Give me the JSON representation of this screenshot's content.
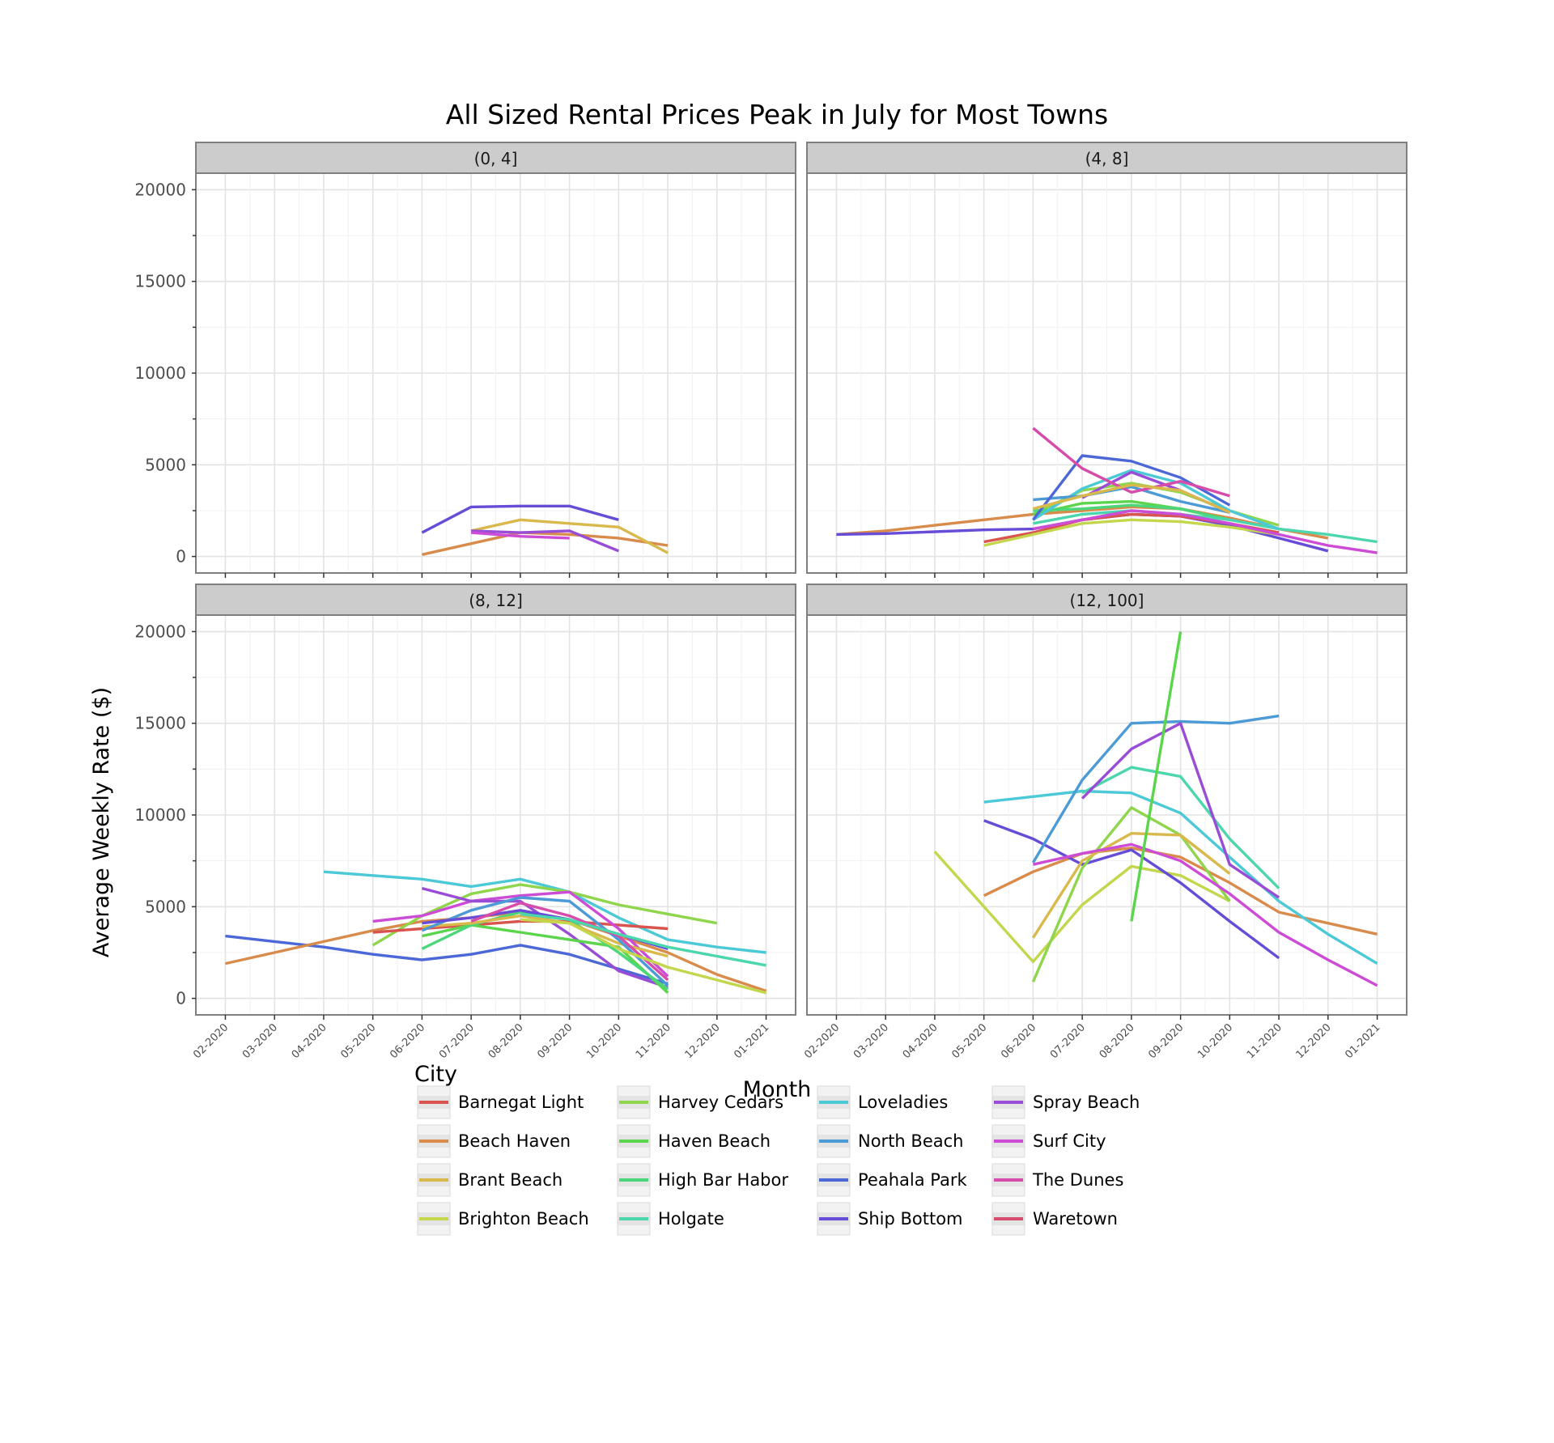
{
  "chart_data": {
    "type": "line",
    "title": "All Sized Rental Prices Peak in July for Most Towns",
    "xlabel": "Month",
    "ylabel": "Average Weekly Rate ($)",
    "x": [
      "02-2020",
      "03-2020",
      "04-2020",
      "05-2020",
      "06-2020",
      "07-2020",
      "08-2020",
      "09-2020",
      "10-2020",
      "11-2020",
      "12-2020",
      "01-2021"
    ],
    "ylim": [
      -900,
      20900
    ],
    "yticks": [
      0,
      5000,
      10000,
      15000,
      20000
    ],
    "grid": true,
    "legend": {
      "title": "City",
      "placement": "bottom",
      "entries": [
        {
          "name": "Barnegat Light",
          "color": "#d9534f"
        },
        {
          "name": "Beach Haven",
          "color": "#d98b4c"
        },
        {
          "name": "Brant Beach",
          "color": "#d9b84c"
        },
        {
          "name": "Brighton Beach",
          "color": "#c3d64c"
        },
        {
          "name": "Harvey Cedars",
          "color": "#8fd64c"
        },
        {
          "name": "Haven Beach",
          "color": "#5bd64c"
        },
        {
          "name": "High Bar Habor",
          "color": "#4cd67a"
        },
        {
          "name": "Holgate",
          "color": "#4cd6ad"
        },
        {
          "name": "Loveladies",
          "color": "#4cc9d6"
        },
        {
          "name": "North Beach",
          "color": "#4c9ad6"
        },
        {
          "name": "Peahala Park",
          "color": "#4c67d6"
        },
        {
          "name": "Ship Bottom",
          "color": "#664cd6"
        },
        {
          "name": "Spray Beach",
          "color": "#994cd6"
        },
        {
          "name": "Surf City",
          "color": "#cc4cd6"
        },
        {
          "name": "The Dunes",
          "color": "#d64caa"
        },
        {
          "name": "Waretown",
          "color": "#d64c6e"
        }
      ]
    },
    "panels": [
      {
        "label": "(0, 4]",
        "series": [
          {
            "name": "Beach Haven",
            "start": "06-2020",
            "values": [
              100,
              700,
              1300,
              1200,
              1000,
              600
            ]
          },
          {
            "name": "Brant Beach",
            "start": "07-2020",
            "values": [
              1400,
              2000,
              1800,
              1600,
              200
            ]
          },
          {
            "name": "Spray Beach",
            "start": "07-2020",
            "values": [
              1400,
              1300,
              1400,
              300
            ]
          },
          {
            "name": "Surf City",
            "start": "07-2020",
            "values": [
              1300,
              1100,
              1000
            ]
          },
          {
            "name": "Ship Bottom",
            "start": "06-2020",
            "values": [
              1300,
              2700,
              2750,
              2750,
              2000
            ]
          }
        ]
      },
      {
        "label": "(4, 8]",
        "series": [
          {
            "name": "Beach Haven",
            "start": "02-2020",
            "values": [
              1200,
              1400,
              1700,
              2000,
              2300,
              2500,
              2700,
              2600,
              2100,
              1500,
              1000
            ]
          },
          {
            "name": "Ship Bottom",
            "start": "02-2020",
            "values": [
              1200,
              1250,
              1350,
              1450,
              1500,
              2000,
              2300,
              2200,
              1700,
              1000,
              300
            ]
          },
          {
            "name": "Barnegat Light",
            "start": "05-2020",
            "values": [
              800,
              1300,
              2000,
              2300,
              2200,
              1800,
              1300
            ]
          },
          {
            "name": "Brighton Beach",
            "start": "05-2020",
            "values": [
              600,
              1200,
              1800,
              2000,
              1900,
              1600,
              1200
            ]
          },
          {
            "name": "Harvey Cedars",
            "start": "06-2020",
            "values": [
              2300,
              3600,
              4000,
              3500,
              2500,
              1700
            ]
          },
          {
            "name": "Haven Beach",
            "start": "06-2020",
            "values": [
              2300,
              2900,
              3000,
              2600,
              2000
            ]
          },
          {
            "name": "High Bar Habor",
            "start": "06-2020",
            "values": [
              2500,
              2600,
              2800,
              2600,
              2000
            ]
          },
          {
            "name": "Holgate",
            "start": "06-2020",
            "values": [
              1800,
              2300,
              2500,
              2300,
              2000,
              1500,
              1200,
              800
            ]
          },
          {
            "name": "Loveladies",
            "start": "06-2020",
            "values": [
              2000,
              3700,
              4700,
              4000,
              2500,
              1500
            ]
          },
          {
            "name": "North Beach",
            "start": "06-2020",
            "values": [
              3100,
              3300,
              3800,
              3000,
              2400
            ]
          },
          {
            "name": "Peahala Park",
            "start": "06-2020",
            "values": [
              2000,
              5500,
              5200,
              4300,
              2800
            ]
          },
          {
            "name": "Spray Beach",
            "start": "07-2020",
            "values": [
              3200,
              4600,
              3600,
              2400
            ]
          },
          {
            "name": "Surf City",
            "start": "06-2020",
            "values": [
              1500,
              2000,
              2500,
              2300,
              1800,
              1200,
              600,
              200
            ]
          },
          {
            "name": "The Dunes",
            "start": "06-2020",
            "values": [
              7000,
              4800,
              3500,
              4100,
              3300
            ]
          },
          {
            "name": "Brant Beach",
            "start": "06-2020",
            "values": [
              2600,
              3300,
              3900,
              3600,
              2400
            ]
          }
        ]
      },
      {
        "label": "(8, 12]",
        "series": [
          {
            "name": "Peahala Park",
            "start": "02-2020",
            "values": [
              3400,
              3100,
              2800,
              2400,
              2100,
              2400,
              2900,
              2400,
              1600,
              800
            ]
          },
          {
            "name": "Beach Haven",
            "start": "02-2020",
            "values": [
              1900,
              2500,
              3100,
              3700,
              4200,
              4400,
              4700,
              4300,
              3400,
              2500,
              1300,
              400
            ]
          },
          {
            "name": "Loveladies",
            "start": "04-2020",
            "values": [
              6900,
              6700,
              6500,
              6100,
              6500,
              5800,
              4400,
              3200,
              2800,
              2500
            ]
          },
          {
            "name": "Harvey Cedars",
            "start": "05-2020",
            "values": [
              2900,
              4500,
              5700,
              6200,
              5800,
              5100,
              4600,
              4100
            ]
          },
          {
            "name": "Barnegat Light",
            "start": "05-2020",
            "values": [
              3600,
              3800,
              4000,
              4200,
              4200,
              4000,
              3800
            ]
          },
          {
            "name": "Surf City",
            "start": "05-2020",
            "values": [
              4200,
              4500,
              5300,
              5600,
              5800,
              3800,
              1200
            ]
          },
          {
            "name": "Spray Beach",
            "start": "06-2020",
            "values": [
              6000,
              5300,
              5300,
              3500,
              1500,
              600
            ]
          },
          {
            "name": "Haven Beach",
            "start": "06-2020",
            "values": [
              3400,
              4000,
              3600,
              3200,
              2800,
              300
            ]
          },
          {
            "name": "High Bar Habor",
            "start": "06-2020",
            "values": [
              2700,
              4000,
              4700,
              4300,
              2500,
              500
            ]
          },
          {
            "name": "Brant Beach",
            "start": "06-2020",
            "values": [
              3900,
              4100,
              4500,
              4100,
              3000,
              2300
            ]
          },
          {
            "name": "North Beach",
            "start": "06-2020",
            "values": [
              3700,
              4800,
              5500,
              5300,
              3200,
              700
            ]
          },
          {
            "name": "Ship Bottom",
            "start": "06-2020",
            "values": [
              4100,
              4400,
              4800,
              4300,
              3500,
              2700
            ]
          },
          {
            "name": "The Dunes",
            "start": "07-2020",
            "values": [
              4200,
              5200,
              4500,
              3400,
              1000
            ]
          },
          {
            "name": "Holgate",
            "start": "08-2020",
            "values": [
              4600,
              4300,
              3500,
              2800,
              2300,
              1800
            ]
          },
          {
            "name": "Brighton Beach",
            "start": "08-2020",
            "values": [
              4300,
              4100,
              2700,
              1700,
              1000,
              300
            ]
          }
        ]
      },
      {
        "label": "(12, 100]",
        "series": [
          {
            "name": "Brighton Beach",
            "start": "04-2020",
            "values": [
              8000,
              5000,
              2000,
              5100,
              7200,
              6700,
              5300
            ]
          },
          {
            "name": "Beach Haven",
            "start": "05-2020",
            "values": [
              5600,
              6900,
              7900,
              8200,
              7700,
              6300,
              4700,
              4100,
              3500
            ]
          },
          {
            "name": "Loveladies",
            "start": "05-2020",
            "values": [
              10700,
              11000,
              11300,
              11200,
              10100,
              7700,
              5300,
              3500,
              1900
            ]
          },
          {
            "name": "Ship Bottom",
            "start": "05-2020",
            "values": [
              9700,
              8700,
              7300,
              8100,
              6300,
              4200,
              2200
            ]
          },
          {
            "name": "Harvey Cedars",
            "start": "06-2020",
            "values": [
              900,
              7100,
              10400,
              8900,
              5300
            ]
          },
          {
            "name": "Brant Beach",
            "start": "06-2020",
            "values": [
              3300,
              7500,
              9000,
              8900,
              6800
            ]
          },
          {
            "name": "North Beach",
            "start": "06-2020",
            "values": [
              7400,
              11900,
              15000,
              15100,
              15000,
              15400
            ]
          },
          {
            "name": "Holgate",
            "start": "07-2020",
            "values": [
              11200,
              12600,
              12100,
              8700,
              6000
            ]
          },
          {
            "name": "Spray Beach",
            "start": "07-2020",
            "values": [
              10900,
              13600,
              15000,
              7300,
              5500
            ]
          },
          {
            "name": "Surf City",
            "start": "06-2020",
            "values": [
              7300,
              7900,
              8400,
              7500,
              5700,
              3600,
              2100,
              700
            ]
          },
          {
            "name": "Haven Beach",
            "start": "08-2020",
            "values": [
              4200,
              20000
            ]
          }
        ]
      }
    ]
  }
}
